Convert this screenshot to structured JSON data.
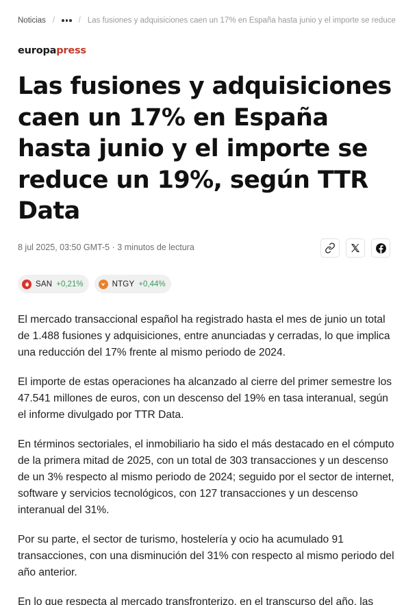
{
  "breadcrumb": {
    "home": "Noticias",
    "separator": "/",
    "current": "Las fusiones y adquisiciones caen un 17% en España hasta junio y el importe se reduce"
  },
  "brand": {
    "part1": "europa",
    "part2": "press"
  },
  "article": {
    "headline": "Las fusiones y adquisiciones caen un 17% en España hasta junio y el importe se reduce un 19%, según TTR Data",
    "meta": "8 jul 2025, 03:50 GMT-5 · 3 minutos de lectura",
    "paragraphs": [
      "El mercado transaccional español ha registrado hasta el mes de junio un total de 1.488 fusiones y adquisiciones, entre anunciadas y cerradas, lo que implica una reducción del 17% frente al mismo periodo de 2024.",
      "El importe de estas operaciones ha alcanzado al cierre del primer semestre los 47.541 millones de euros, con un descenso del 19% en tasa interanual, según el informe divulgado por TTR Data.",
      "En términos sectoriales, el inmobiliario ha sido el más destacado en el cómputo de la primera mitad de 2025, con un total de 303 transacciones y un descenso de un 3% respecto al mismo periodo de 2024; seguido por el sector de internet, software y servicios tecnológicos, con 127 transacciones y un descenso interanual del 31%.",
      "Por su parte, el sector de turismo, hostelería y ocio ha acumulado 91 transacciones, con una disminución del 31% con respecto al mismo periodo del año anterior.",
      "En lo que respecta al mercado transfronterizo, en el transcurso del año, las"
    ]
  },
  "share": {
    "icons": [
      "link-icon",
      "x-icon",
      "facebook-icon"
    ]
  },
  "tickers": [
    {
      "symbol": "SAN",
      "change": "+0,21%",
      "logo_color": "#d8322a"
    },
    {
      "symbol": "NTGY",
      "change": "+0,44%",
      "logo_color": "#e8822a"
    }
  ],
  "colors": {
    "brand_accent": "#c0392b",
    "positive": "#3a9a5c"
  }
}
